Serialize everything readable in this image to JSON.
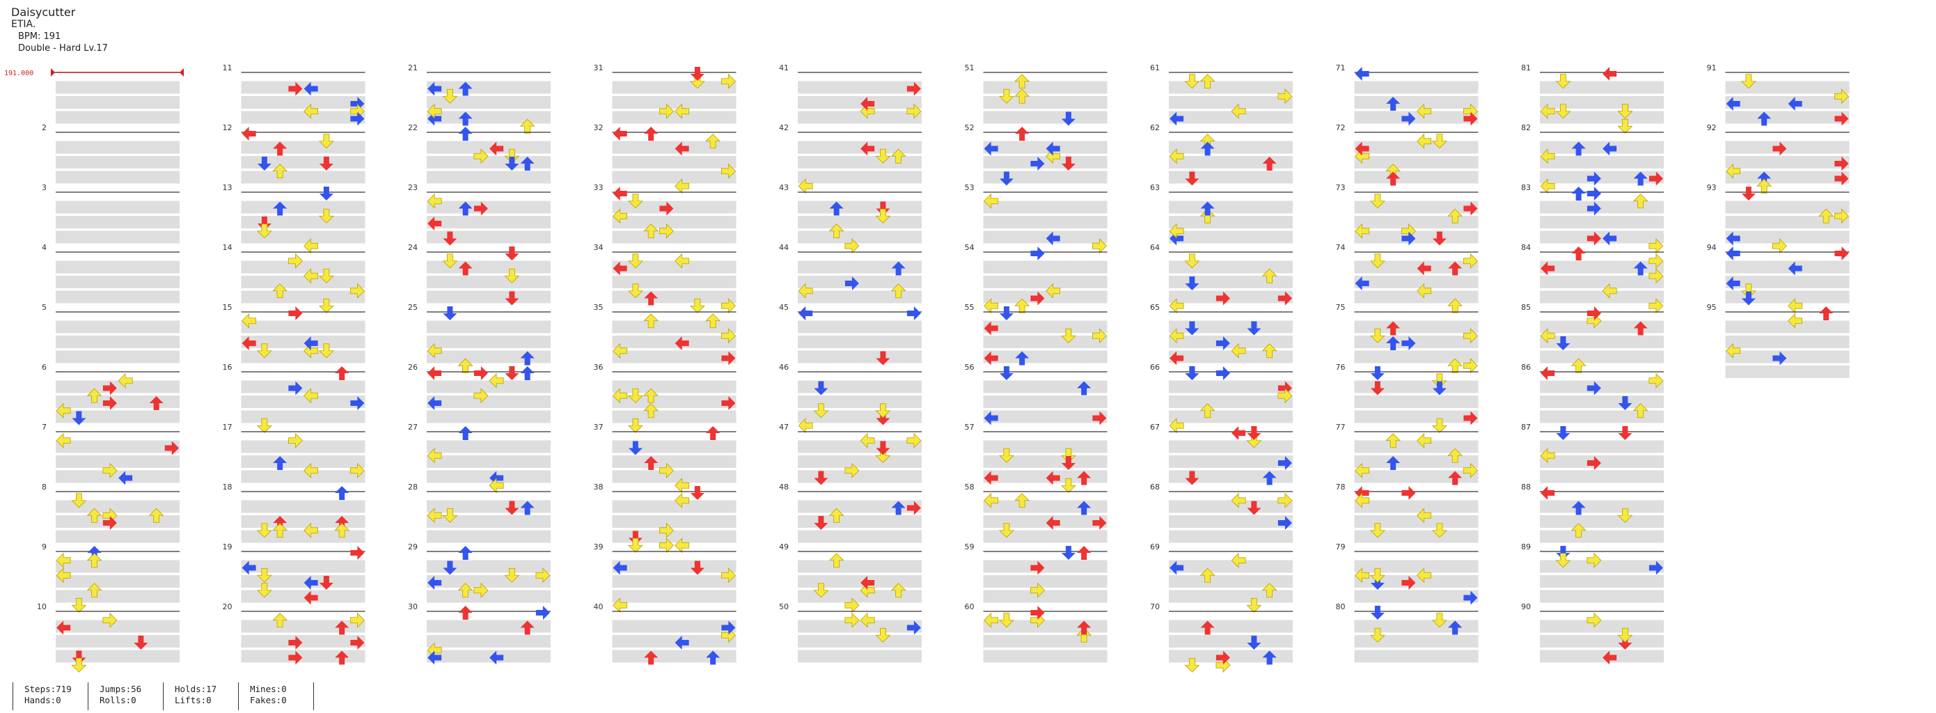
{
  "song": {
    "title": "Daisycutter",
    "artist": "ETIA.",
    "bpm_text": "BPM: 191",
    "chart_text": "Double - Hard Lv.17"
  },
  "bpm_marker": {
    "text": "191.000",
    "color": "#cc2222"
  },
  "colors": {
    "red": "#ee3333",
    "blue": "#3355ee",
    "yellow": "#f6e83e",
    "hold": "#8ad88a"
  },
  "measures": {
    "total": 95,
    "per_column": 10
  },
  "stats": {
    "steps": "Steps:719",
    "jumps": "Jumps:56",
    "holds": "Holds:17",
    "mines": "Mines:0",
    "hands": "Hands:0",
    "rolls": "Rolls:0",
    "lifts": "Lifts:0",
    "fakes": "Fakes:0"
  }
}
